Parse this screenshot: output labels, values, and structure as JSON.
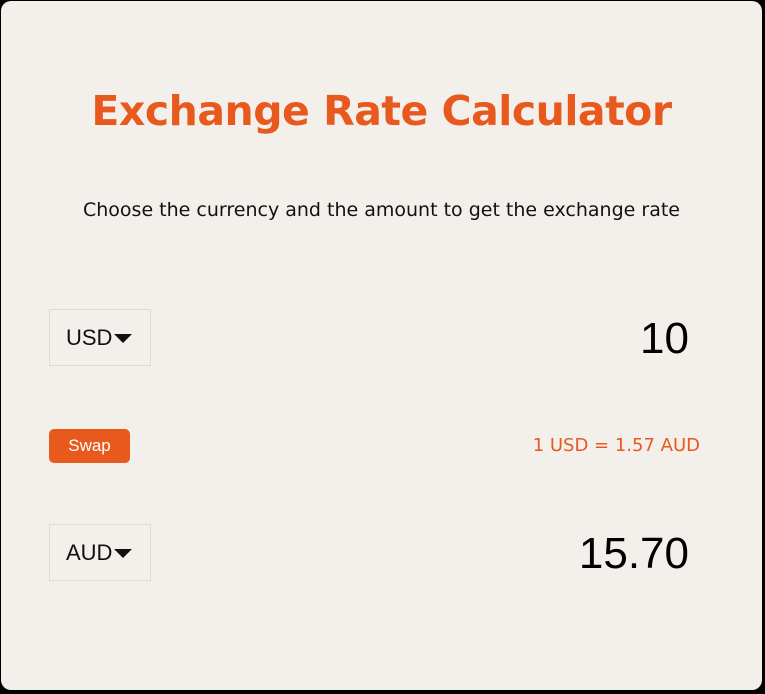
{
  "title": "Exchange Rate Calculator",
  "subtitle": "Choose the currency and the amount to get the exchange rate",
  "from": {
    "currency": "USD",
    "amount": "10"
  },
  "to": {
    "currency": "AUD",
    "amount": "15.70"
  },
  "swap_label": "Swap",
  "rate_text": "1 USD = 1.57 AUD",
  "colors": {
    "accent": "#e8591e",
    "background": "#f3f0eb",
    "frame": "#000000",
    "text": "#111111"
  },
  "icons": {
    "dropdown": "caret-down-icon"
  }
}
